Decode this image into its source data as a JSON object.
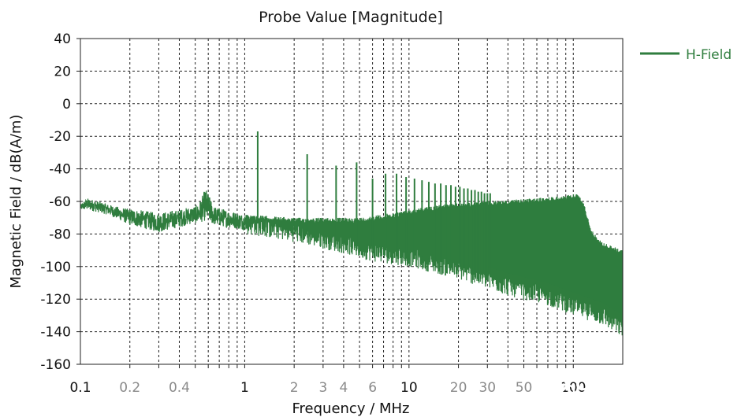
{
  "chart_data": {
    "type": "line",
    "title": "Probe Value [Magnitude]",
    "xlabel": "Frequency / MHz",
    "ylabel": "Magnetic Field / dB(A/m)",
    "x_scale": "log",
    "xlim": [
      0.1,
      200
    ],
    "ylim": [
      -160,
      40
    ],
    "x_ticks": [
      {
        "value": 0.1,
        "label": "0.1",
        "major": true
      },
      {
        "value": 0.2,
        "label": "0.2",
        "major": false
      },
      {
        "value": 0.4,
        "label": "0.4",
        "major": false
      },
      {
        "value": 1,
        "label": "1",
        "major": true
      },
      {
        "value": 2,
        "label": "2",
        "major": false
      },
      {
        "value": 3,
        "label": "3",
        "major": false
      },
      {
        "value": 4,
        "label": "4",
        "major": false
      },
      {
        "value": 6,
        "label": "6",
        "major": false
      },
      {
        "value": 10,
        "label": "10",
        "major": true
      },
      {
        "value": 20,
        "label": "20",
        "major": false
      },
      {
        "value": 30,
        "label": "30",
        "major": false
      },
      {
        "value": 50,
        "label": "50",
        "major": false
      },
      {
        "value": 100,
        "label": "100",
        "major": true
      }
    ],
    "y_ticks": [
      40,
      20,
      0,
      -20,
      -40,
      -60,
      -80,
      -100,
      -120,
      -140,
      -160
    ],
    "grid": true,
    "legend": {
      "position": "top-right",
      "entries": [
        "H-Field"
      ]
    },
    "series": [
      {
        "name": "H-Field",
        "color": "#2f7d3e",
        "envelope_upper": [
          {
            "x": 0.1,
            "y": -62
          },
          {
            "x": 0.11,
            "y": -58
          },
          {
            "x": 0.13,
            "y": -60
          },
          {
            "x": 0.15,
            "y": -62
          },
          {
            "x": 0.18,
            "y": -64
          },
          {
            "x": 0.22,
            "y": -65
          },
          {
            "x": 0.3,
            "y": -67
          },
          {
            "x": 0.4,
            "y": -65
          },
          {
            "x": 0.52,
            "y": -62
          },
          {
            "x": 0.58,
            "y": -52
          },
          {
            "x": 0.65,
            "y": -63
          },
          {
            "x": 1,
            "y": -68
          },
          {
            "x": 2,
            "y": -70
          },
          {
            "x": 5,
            "y": -70
          },
          {
            "x": 8,
            "y": -67
          },
          {
            "x": 15,
            "y": -62
          },
          {
            "x": 30,
            "y": -60
          },
          {
            "x": 60,
            "y": -58
          },
          {
            "x": 95,
            "y": -56
          },
          {
            "x": 105,
            "y": -55
          },
          {
            "x": 115,
            "y": -60
          },
          {
            "x": 130,
            "y": -78
          },
          {
            "x": 150,
            "y": -85
          },
          {
            "x": 200,
            "y": -90
          }
        ],
        "envelope_lower": [
          {
            "x": 0.1,
            "y": -66
          },
          {
            "x": 0.15,
            "y": -70
          },
          {
            "x": 0.2,
            "y": -77
          },
          {
            "x": 0.3,
            "y": -82
          },
          {
            "x": 0.5,
            "y": -76
          },
          {
            "x": 1,
            "y": -80
          },
          {
            "x": 2,
            "y": -85
          },
          {
            "x": 4,
            "y": -92
          },
          {
            "x": 6,
            "y": -97
          },
          {
            "x": 10,
            "y": -100
          },
          {
            "x": 20,
            "y": -108
          },
          {
            "x": 40,
            "y": -118
          },
          {
            "x": 70,
            "y": -124
          },
          {
            "x": 100,
            "y": -130
          },
          {
            "x": 150,
            "y": -136
          },
          {
            "x": 200,
            "y": -144
          }
        ],
        "spikes": [
          {
            "x": 1.2,
            "y": -17
          },
          {
            "x": 2.4,
            "y": -31
          },
          {
            "x": 3.6,
            "y": -38
          },
          {
            "x": 4.8,
            "y": -36
          },
          {
            "x": 6.0,
            "y": -46
          },
          {
            "x": 7.2,
            "y": -43
          },
          {
            "x": 8.4,
            "y": -43
          },
          {
            "x": 9.6,
            "y": -45
          },
          {
            "x": 10.8,
            "y": -46
          },
          {
            "x": 12.0,
            "y": -47
          },
          {
            "x": 13.2,
            "y": -48
          },
          {
            "x": 14.4,
            "y": -49
          },
          {
            "x": 15.6,
            "y": -49
          },
          {
            "x": 16.8,
            "y": -50
          },
          {
            "x": 18.0,
            "y": -50
          },
          {
            "x": 19.2,
            "y": -51
          },
          {
            "x": 20.4,
            "y": -51
          },
          {
            "x": 21.6,
            "y": -52
          },
          {
            "x": 22.8,
            "y": -52
          },
          {
            "x": 24.0,
            "y": -53
          },
          {
            "x": 25.2,
            "y": -53
          },
          {
            "x": 26.4,
            "y": -54
          },
          {
            "x": 27.6,
            "y": -54
          },
          {
            "x": 28.8,
            "y": -55
          },
          {
            "x": 30.0,
            "y": -55
          },
          {
            "x": 31.2,
            "y": -55
          }
        ]
      }
    ]
  },
  "watermark": {
    "text": "CST仿真专家之路",
    "icon": "wechat-icon"
  }
}
